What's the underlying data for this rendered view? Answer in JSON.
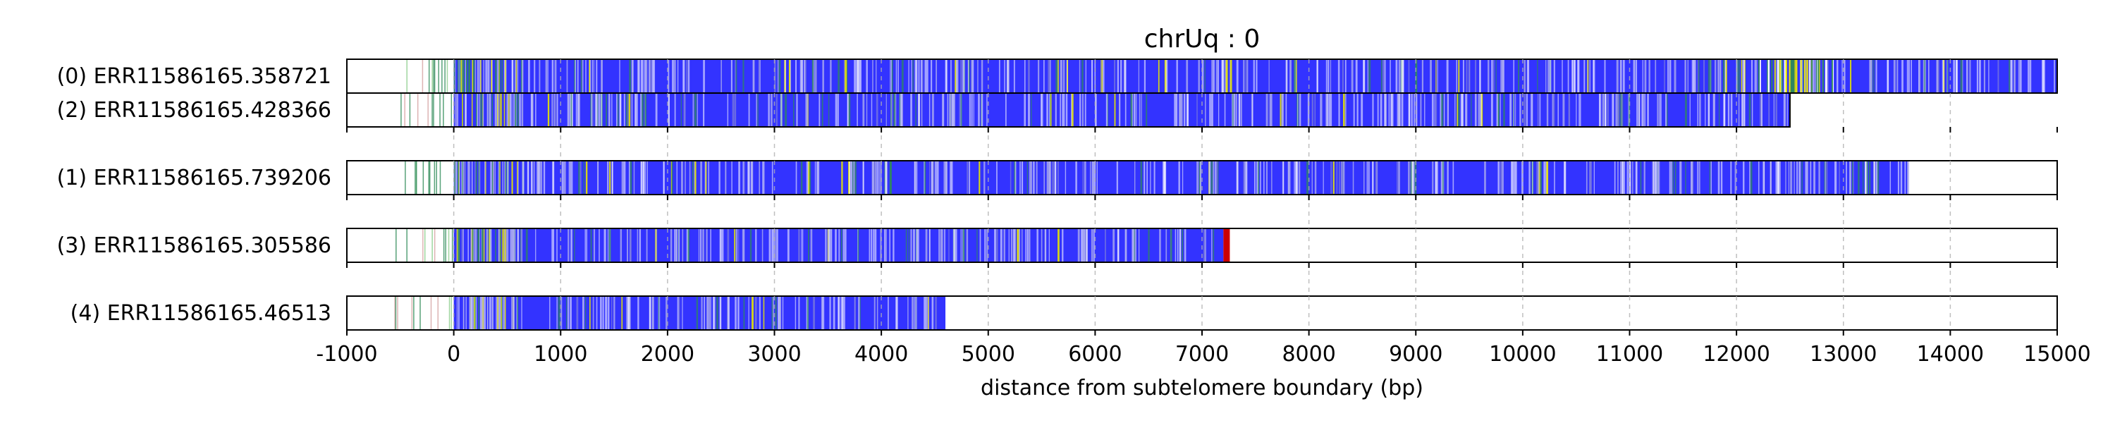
{
  "chart_data": {
    "type": "bar",
    "title": "chrUq : 0",
    "xlabel": "distance from subtelomere boundary (bp)",
    "xlim": [
      -1000,
      15000
    ],
    "xticks": [
      -1000,
      0,
      1000,
      2000,
      3000,
      4000,
      5000,
      6000,
      7000,
      8000,
      9000,
      10000,
      11000,
      12000,
      13000,
      14000,
      15000
    ],
    "tick_labels": [
      "-1000",
      "0",
      "1000",
      "2000",
      "3000",
      "4000",
      "5000",
      "6000",
      "7000",
      "8000",
      "9000",
      "10000",
      "11000",
      "12000",
      "13000",
      "14000",
      "15000"
    ],
    "grid": "vertical dashed",
    "colors": {
      "repeat": "#3333ff",
      "variant_green": "#2e8b57",
      "variant_yellow": "#e6e600",
      "variant_light": "#aaaaee",
      "variant_red": "#cc0000",
      "gap_white": "#ffffff"
    },
    "reads": [
      {
        "label": "(0) ERR11586165.358721",
        "order": 0,
        "start": -1000,
        "repeat_start": 0,
        "end": 15000,
        "repeat_end": 15000,
        "green_cluster": [
          12200,
          12900
        ]
      },
      {
        "label": "(2) ERR11586165.428366",
        "order": 1,
        "start": -1000,
        "repeat_start": 0,
        "end": 12500,
        "repeat_end": 12500,
        "green_cluster": null
      },
      {
        "label": "(1) ERR11586165.739206",
        "order": 2,
        "start": -1000,
        "repeat_start": 0,
        "end": 15000,
        "repeat_end": 13600,
        "green_cluster": null
      },
      {
        "label": "(3) ERR11586165.305586",
        "order": 3,
        "start": -1000,
        "repeat_start": 0,
        "end": 15000,
        "repeat_end": 7200,
        "green_cluster": null,
        "red_end": [
          7200,
          7260
        ]
      },
      {
        "label": "(4) ERR11586165.46513",
        "order": 4,
        "start": -1000,
        "repeat_start": 0,
        "end": 15000,
        "repeat_end": 4600,
        "green_cluster": null,
        "gap_after": [
          4600,
          4760
        ]
      }
    ]
  }
}
